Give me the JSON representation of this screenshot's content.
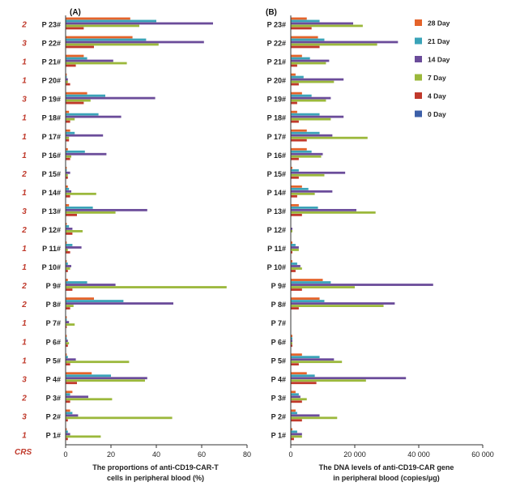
{
  "chart_data": [
    {
      "type": "bar",
      "orientation": "horizontal",
      "panel_label": "(A)",
      "xlabel": "The proportions of anti-CD19-CAR-T cells in peripheral blood (%)",
      "xlabel_lines": [
        "The proportions of anti-CD19-CAR-T",
        "cells in peripheral blood (%)"
      ],
      "xlim": [
        0,
        80
      ],
      "xticks": [
        0,
        20,
        40,
        60,
        80
      ],
      "xtick_labels": [
        "0",
        "20",
        "40",
        "60",
        "80"
      ],
      "categories": [
        "P 23#",
        "P 22#",
        "P 21#",
        "P 20#",
        "P 19#",
        "P 18#",
        "P 17#",
        "P 16#",
        "P 15#",
        "P 14#",
        "P 13#",
        "P 12#",
        "P 11#",
        "P 10#",
        "P 9#",
        "P 8#",
        "P 7#",
        "P 6#",
        "P 5#",
        "P 4#",
        "P 3#",
        "P 2#",
        "P 1#"
      ],
      "crs_label": "CRS",
      "crs": [
        "2",
        "3",
        "1",
        "1",
        "3",
        "1",
        "1",
        "1",
        "2",
        "1",
        "3",
        "2",
        "1",
        "1",
        "2",
        "2",
        "1",
        "1",
        "1",
        "3",
        "2",
        "3",
        "1"
      ],
      "series": [
        {
          "name": "28 Day",
          "values": [
            28.5,
            29.5,
            8,
            0.5,
            9.5,
            1.5,
            2,
            1,
            0.5,
            1,
            1.5,
            0.5,
            0.5,
            0.5,
            1,
            12.5,
            0.5,
            0.5,
            0.5,
            11.5,
            3,
            2,
            0.5
          ]
        },
        {
          "name": "21 Day",
          "values": [
            40,
            35.5,
            9.5,
            0.5,
            17.5,
            14.5,
            4,
            8.5,
            0.5,
            1.5,
            12,
            1.5,
            3,
            1,
            9.5,
            25.5,
            0.5,
            0.5,
            1,
            20,
            2,
            3,
            1
          ]
        },
        {
          "name": "14 Day",
          "values": [
            65,
            61,
            21,
            1,
            39.5,
            24.5,
            16.5,
            18,
            2,
            2.5,
            36,
            3,
            7,
            2.5,
            22,
            47.5,
            1.5,
            1,
            4.5,
            36,
            10,
            5.5,
            2
          ]
        },
        {
          "name": "7 Day",
          "values": [
            32.5,
            41,
            27,
            1,
            11,
            4,
            1.5,
            2.5,
            1,
            13.5,
            22,
            7.5,
            1,
            2,
            71,
            3.5,
            4,
            1.5,
            28,
            35,
            20.5,
            47,
            15.5
          ]
        },
        {
          "name": "4 Day",
          "values": [
            8,
            12.5,
            4.5,
            2,
            8,
            2,
            1.5,
            2,
            1,
            2,
            5,
            3,
            2,
            1,
            3,
            2,
            0.5,
            1,
            2,
            5,
            2,
            1,
            1
          ]
        },
        {
          "name": "0 Day",
          "values": [
            0,
            0,
            0,
            0,
            0,
            0,
            0,
            0,
            0,
            0,
            0,
            0,
            0,
            0,
            0,
            0,
            0,
            0,
            0,
            0,
            0,
            0,
            0
          ]
        }
      ]
    },
    {
      "type": "bar",
      "orientation": "horizontal",
      "panel_label": "(B)",
      "xlabel": "The DNA levels of anti-CD19-CAR gene in peripheral blood (copies/μg)",
      "xlabel_lines": [
        "The DNA levels of anti-CD19-CAR gene",
        "in peripheral blood (copies/μg)"
      ],
      "xlim": [
        0,
        60000
      ],
      "xticks": [
        0,
        20000,
        40000,
        60000
      ],
      "xtick_labels": [
        "0",
        "20 000",
        "40 000",
        "60 000"
      ],
      "categories": [
        "P 23#",
        "P 22#",
        "P 21#",
        "P 20#",
        "P 19#",
        "P 18#",
        "P 17#",
        "P 16#",
        "P 15#",
        "P 14#",
        "P 13#",
        "P 12#",
        "P 11#",
        "P 10#",
        "P 9#",
        "P 8#",
        "P 7#",
        "P 6#",
        "P 5#",
        "P 4#",
        "P 3#",
        "P 2#",
        "P 1#"
      ],
      "series": [
        {
          "name": "28 Day",
          "values": [
            5000,
            8500,
            3500,
            1500,
            3500,
            2000,
            5000,
            5000,
            500,
            3500,
            2500,
            0,
            500,
            500,
            10000,
            9000,
            0,
            500,
            3500,
            5000,
            1500,
            1500,
            500
          ]
        },
        {
          "name": "21 Day",
          "values": [
            9000,
            10500,
            6000,
            4000,
            6500,
            9000,
            9000,
            6500,
            2500,
            5500,
            8500,
            0,
            1500,
            2000,
            12500,
            10500,
            0,
            500,
            9000,
            7500,
            2500,
            2000,
            2000
          ]
        },
        {
          "name": "14 Day",
          "values": [
            19500,
            33500,
            12000,
            16500,
            12500,
            16500,
            13000,
            10000,
            17000,
            13000,
            20500,
            500,
            2500,
            3000,
            44500,
            32500,
            0,
            500,
            13500,
            36000,
            3000,
            9000,
            3500
          ]
        },
        {
          "name": "7 Day",
          "values": [
            22500,
            27000,
            11000,
            13500,
            11000,
            12500,
            24000,
            9500,
            10500,
            7500,
            26500,
            500,
            2500,
            3500,
            20000,
            29000,
            0,
            500,
            16000,
            23500,
            5000,
            14500,
            3500
          ]
        },
        {
          "name": "4 Day",
          "values": [
            6500,
            9000,
            2000,
            2500,
            2000,
            2500,
            5000,
            2500,
            2500,
            2000,
            3500,
            0,
            500,
            1500,
            3500,
            2500,
            0,
            500,
            2500,
            8000,
            3500,
            3500,
            1000
          ]
        },
        {
          "name": "0 Day",
          "values": [
            0,
            0,
            0,
            0,
            0,
            0,
            0,
            0,
            0,
            0,
            0,
            0,
            0,
            0,
            0,
            0,
            0,
            0,
            0,
            0,
            0,
            0,
            0
          ]
        }
      ]
    }
  ],
  "legend": {
    "placement": "top-right",
    "items": [
      {
        "name": "28 Day",
        "color": "#E4632A"
      },
      {
        "name": "21 Day",
        "color": "#3AA3B8"
      },
      {
        "name": "14 Day",
        "color": "#6B4C9A"
      },
      {
        "name": "7 Day",
        "color": "#9BB83B"
      },
      {
        "name": "4 Day",
        "color": "#C0392B"
      },
      {
        "name": "0 Day",
        "color": "#3C5FA8"
      }
    ]
  }
}
